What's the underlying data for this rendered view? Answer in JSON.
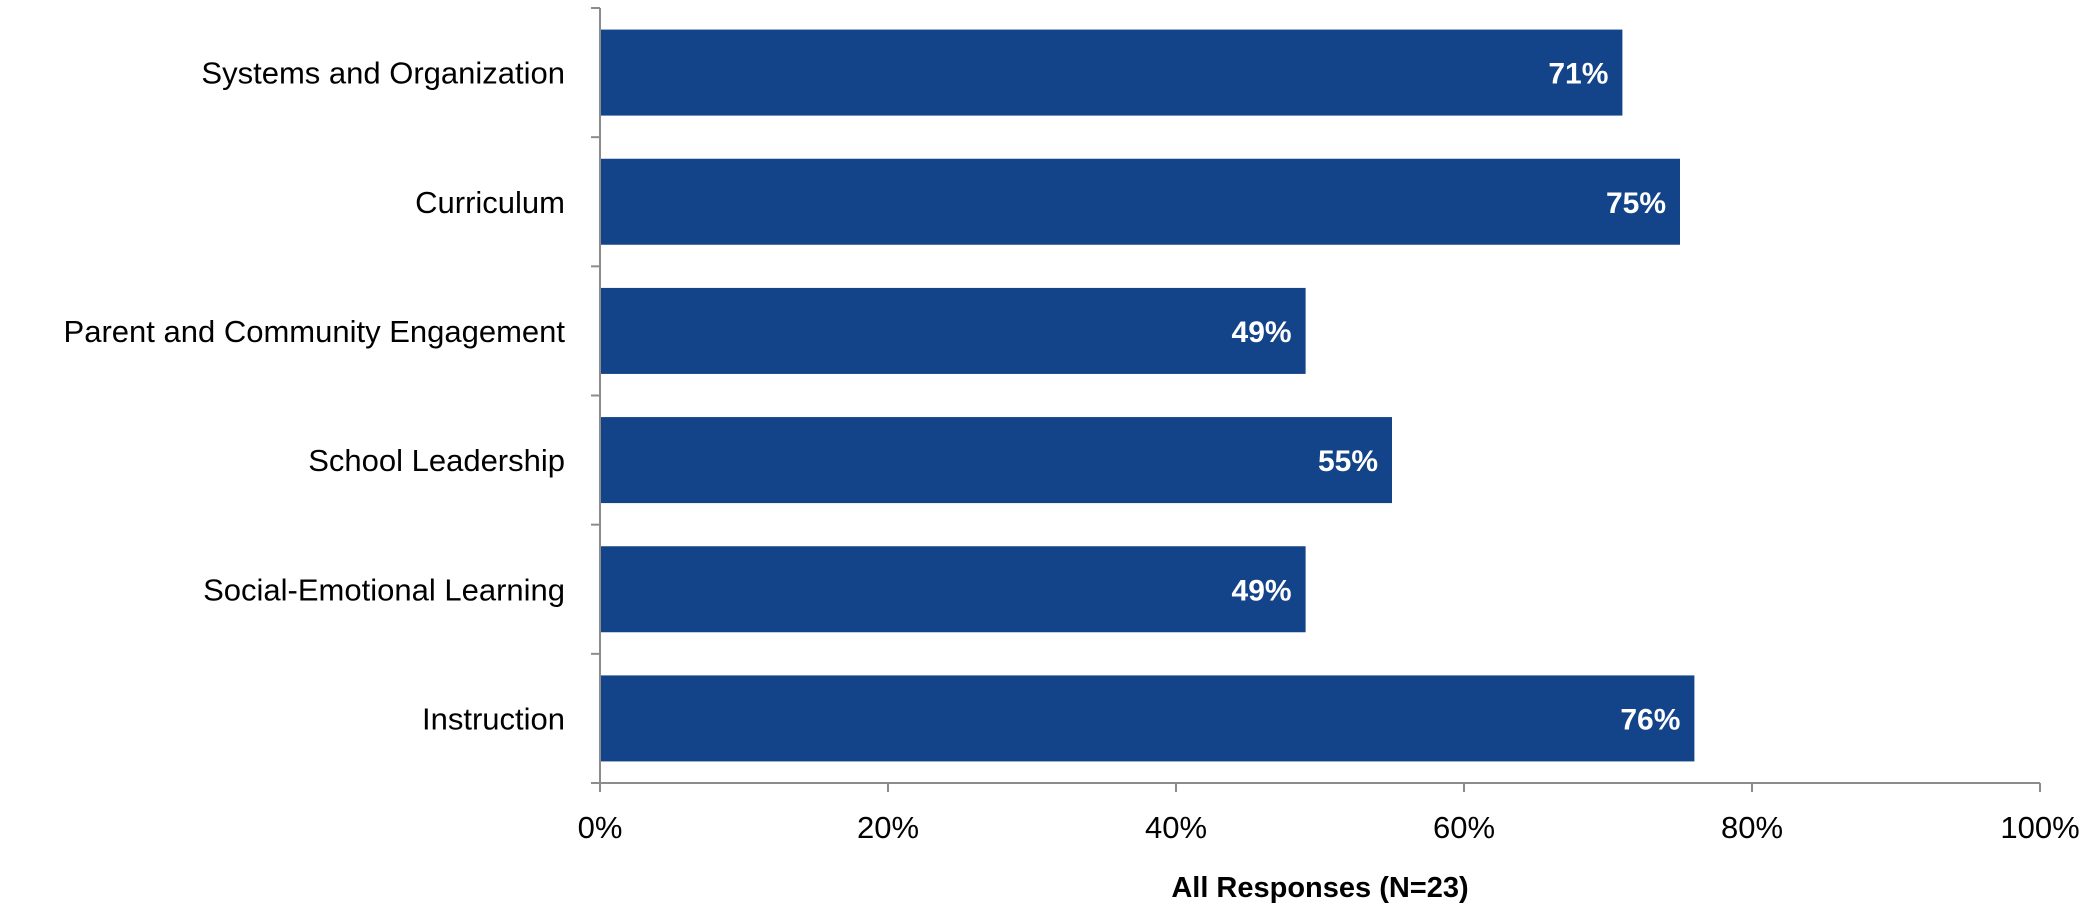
{
  "chart_data": {
    "type": "bar",
    "orientation": "horizontal",
    "title": "",
    "xlabel": "All Responses (N=23)",
    "ylabel": "",
    "categories": [
      "Systems and Organization",
      "Curriculum",
      "Parent and Community Engagement",
      "School Leadership",
      "Social-Emotional Learning",
      "Instruction"
    ],
    "values": [
      71,
      75,
      49,
      55,
      49,
      76
    ],
    "data_labels": [
      "71%",
      "75%",
      "49%",
      "55%",
      "49%",
      "76%"
    ],
    "xlim": [
      0,
      100
    ],
    "x_ticks": [
      0,
      20,
      40,
      60,
      80,
      100
    ],
    "x_tick_labels": [
      "0%",
      "20%",
      "40%",
      "60%",
      "80%",
      "100%"
    ],
    "grid": false,
    "legend": "none",
    "bar_color": "#134388",
    "label_color": "#ffffff"
  }
}
